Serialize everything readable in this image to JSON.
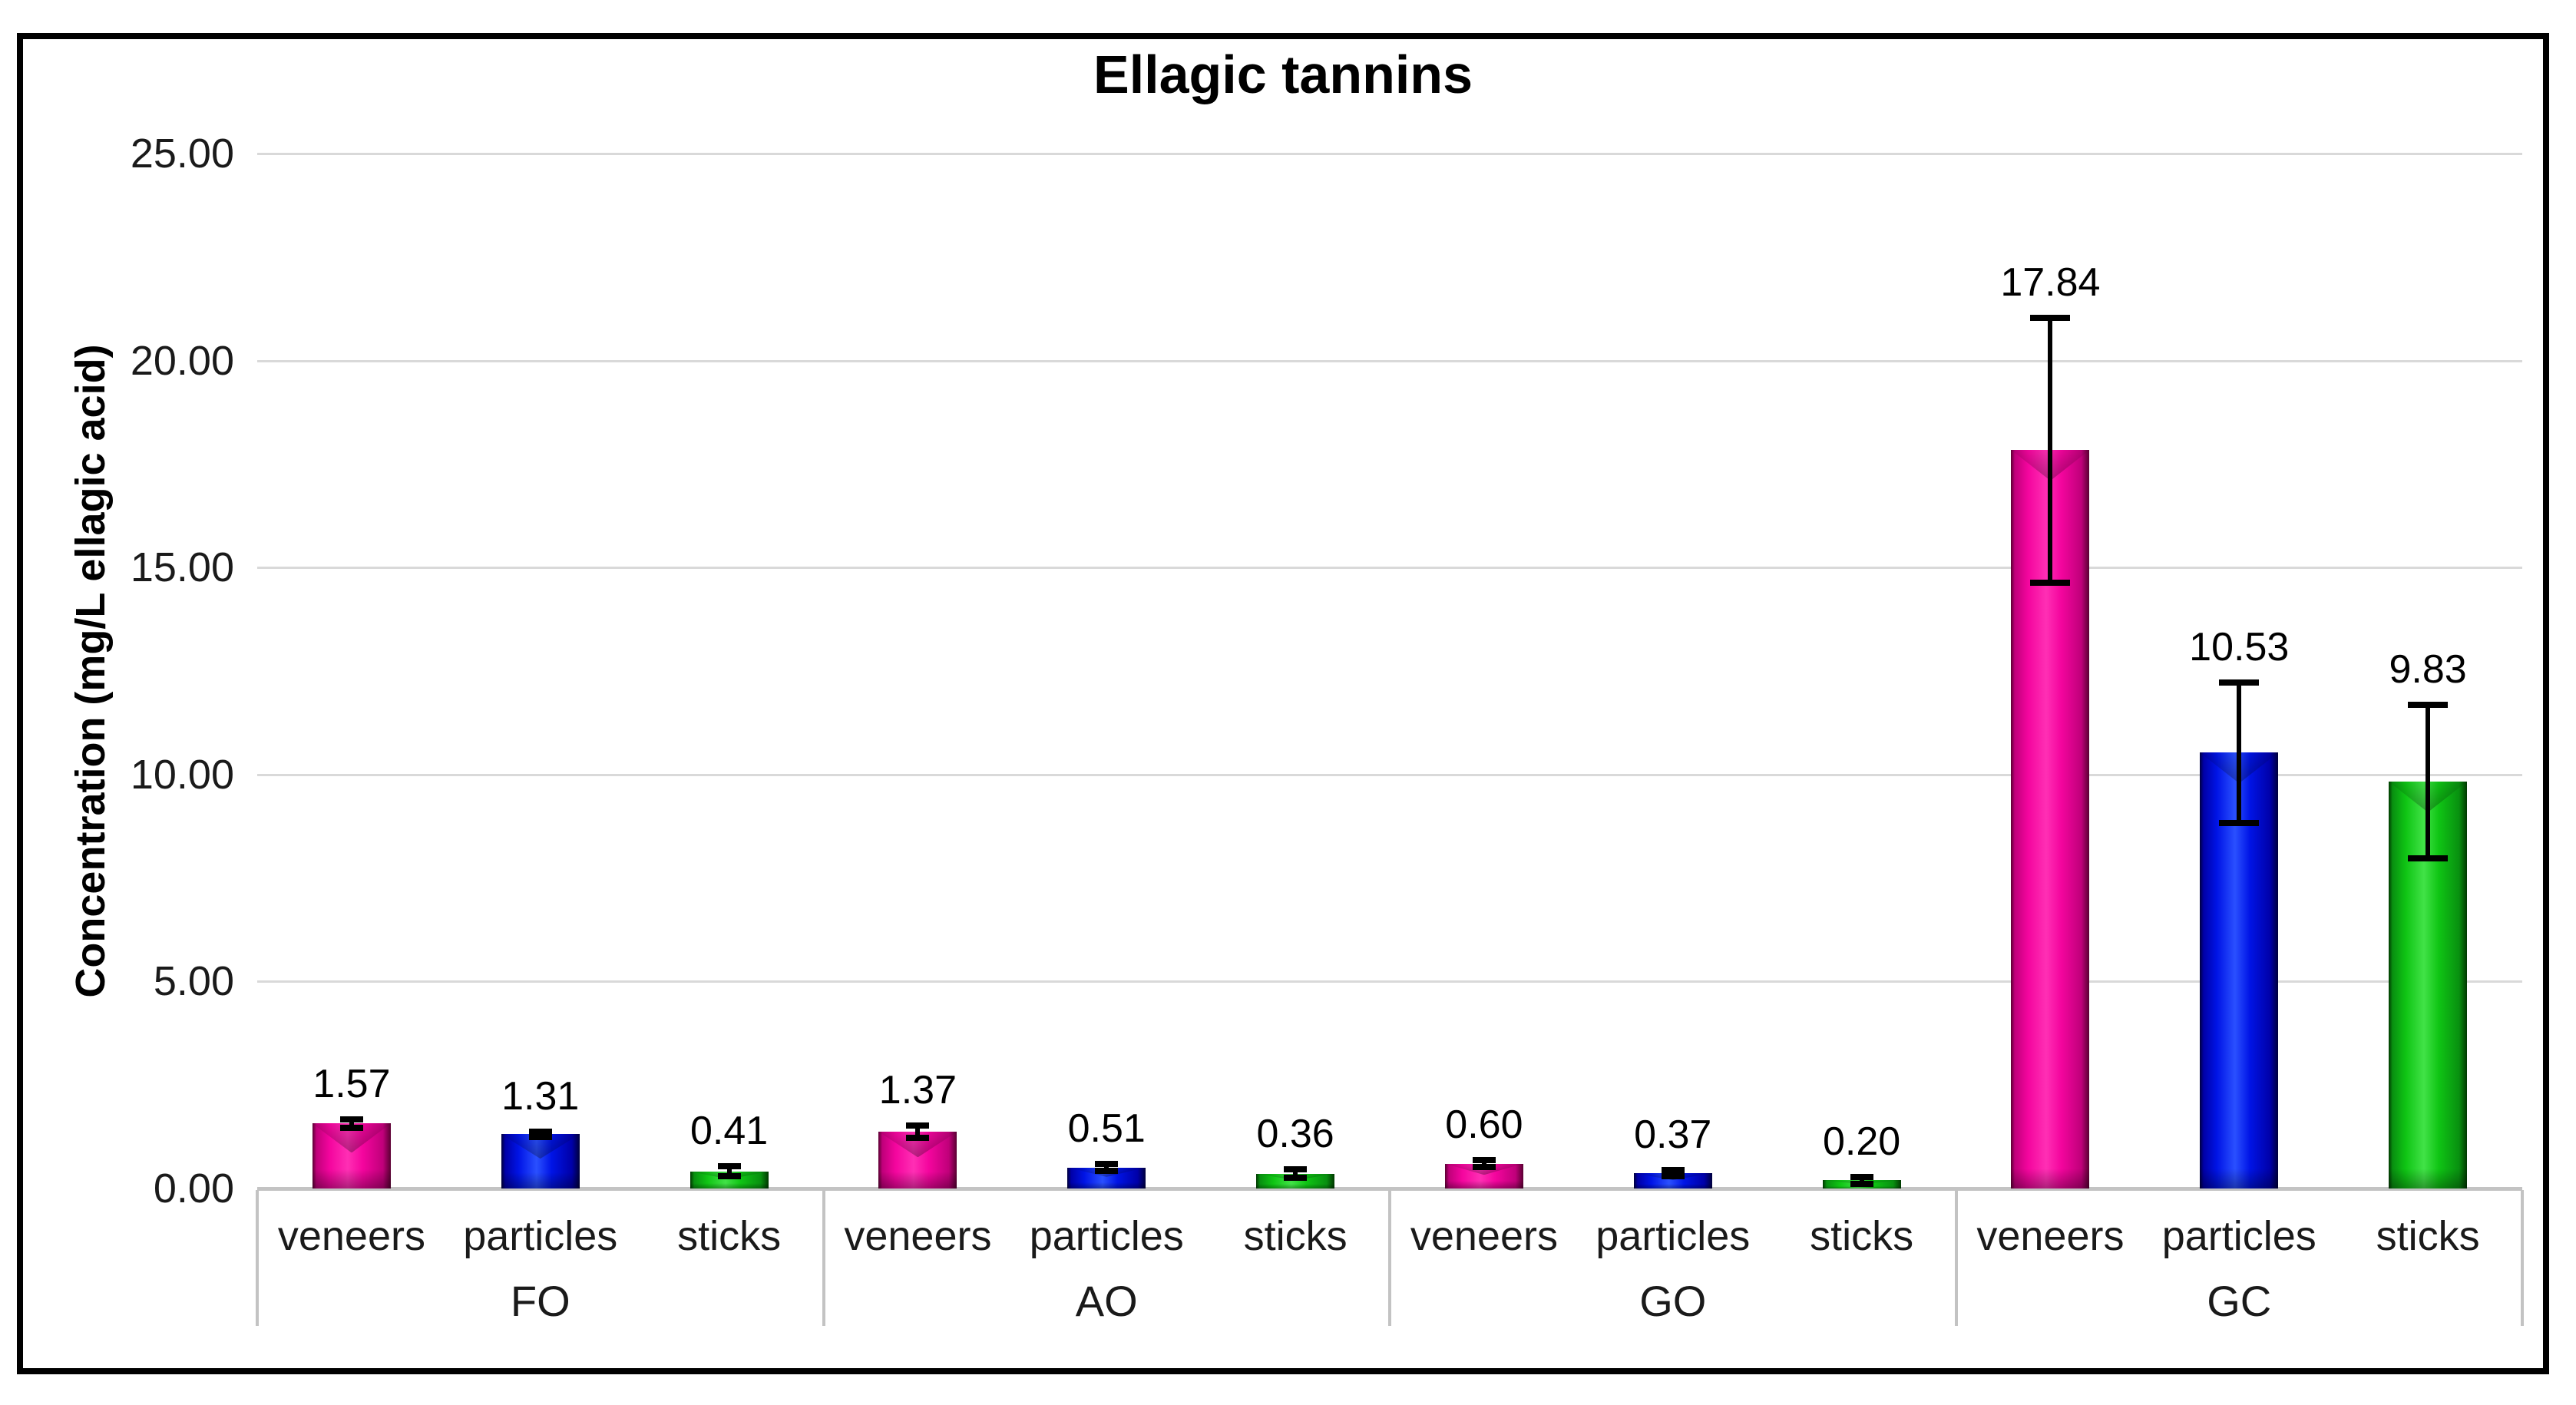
{
  "chart_data": {
    "type": "bar",
    "title": "Ellagic tannins",
    "ylabel": "Concentration (mg/L ellagic acid)",
    "ylim": [
      0,
      25
    ],
    "ytick_step": 5,
    "ytick_labels": [
      "0.00",
      "5.00",
      "10.00",
      "15.00",
      "20.00",
      "25.00"
    ],
    "grid": true,
    "legend": "none",
    "categories": [
      "veneers",
      "particles",
      "sticks"
    ],
    "groups": [
      {
        "label": "FO",
        "bars": [
          {
            "category": "veneers",
            "value": 1.57,
            "label": "1.57",
            "error": 0.1,
            "color": "pink"
          },
          {
            "category": "particles",
            "value": 1.31,
            "label": "1.31",
            "error": 0.06,
            "color": "blue"
          },
          {
            "category": "sticks",
            "value": 0.41,
            "label": "0.41",
            "error": 0.12,
            "color": "green"
          }
        ]
      },
      {
        "label": "AO",
        "bars": [
          {
            "category": "veneers",
            "value": 1.37,
            "label": "1.37",
            "error": 0.15,
            "color": "pink"
          },
          {
            "category": "particles",
            "value": 0.51,
            "label": "0.51",
            "error": 0.08,
            "color": "blue"
          },
          {
            "category": "sticks",
            "value": 0.36,
            "label": "0.36",
            "error": 0.1,
            "color": "green"
          }
        ]
      },
      {
        "label": "GO",
        "bars": [
          {
            "category": "veneers",
            "value": 0.6,
            "label": "0.60",
            "error": 0.08,
            "color": "pink"
          },
          {
            "category": "particles",
            "value": 0.37,
            "label": "0.37",
            "error": 0.07,
            "color": "blue"
          },
          {
            "category": "sticks",
            "value": 0.2,
            "label": "0.20",
            "error": 0.08,
            "color": "green"
          }
        ]
      },
      {
        "label": "GC",
        "bars": [
          {
            "category": "veneers",
            "value": 17.84,
            "label": "17.84",
            "error": 3.2,
            "color": "pink"
          },
          {
            "category": "particles",
            "value": 10.53,
            "label": "10.53",
            "error": 1.7,
            "color": "blue"
          },
          {
            "category": "sticks",
            "value": 9.83,
            "label": "9.83",
            "error": 1.85,
            "color": "green"
          }
        ]
      }
    ],
    "palette": {
      "pink": {
        "edge": "#5a0032",
        "dark": "#c0007a",
        "main": "#f4059e",
        "light": "#ff2fb4"
      },
      "blue": {
        "edge": "#00003c",
        "dark": "#0000a8",
        "main": "#0014e6",
        "light": "#2a50ff"
      },
      "green": {
        "edge": "#003800",
        "dark": "#089010",
        "main": "#0fc514",
        "light": "#41e247"
      }
    },
    "colors": {
      "gridline": "#d9d9d9",
      "axis_line": "#c3c3c3",
      "error_bar": "#000000",
      "text": "#1a1a1a",
      "frame_border": "#000000",
      "background": "#ffffff"
    }
  }
}
